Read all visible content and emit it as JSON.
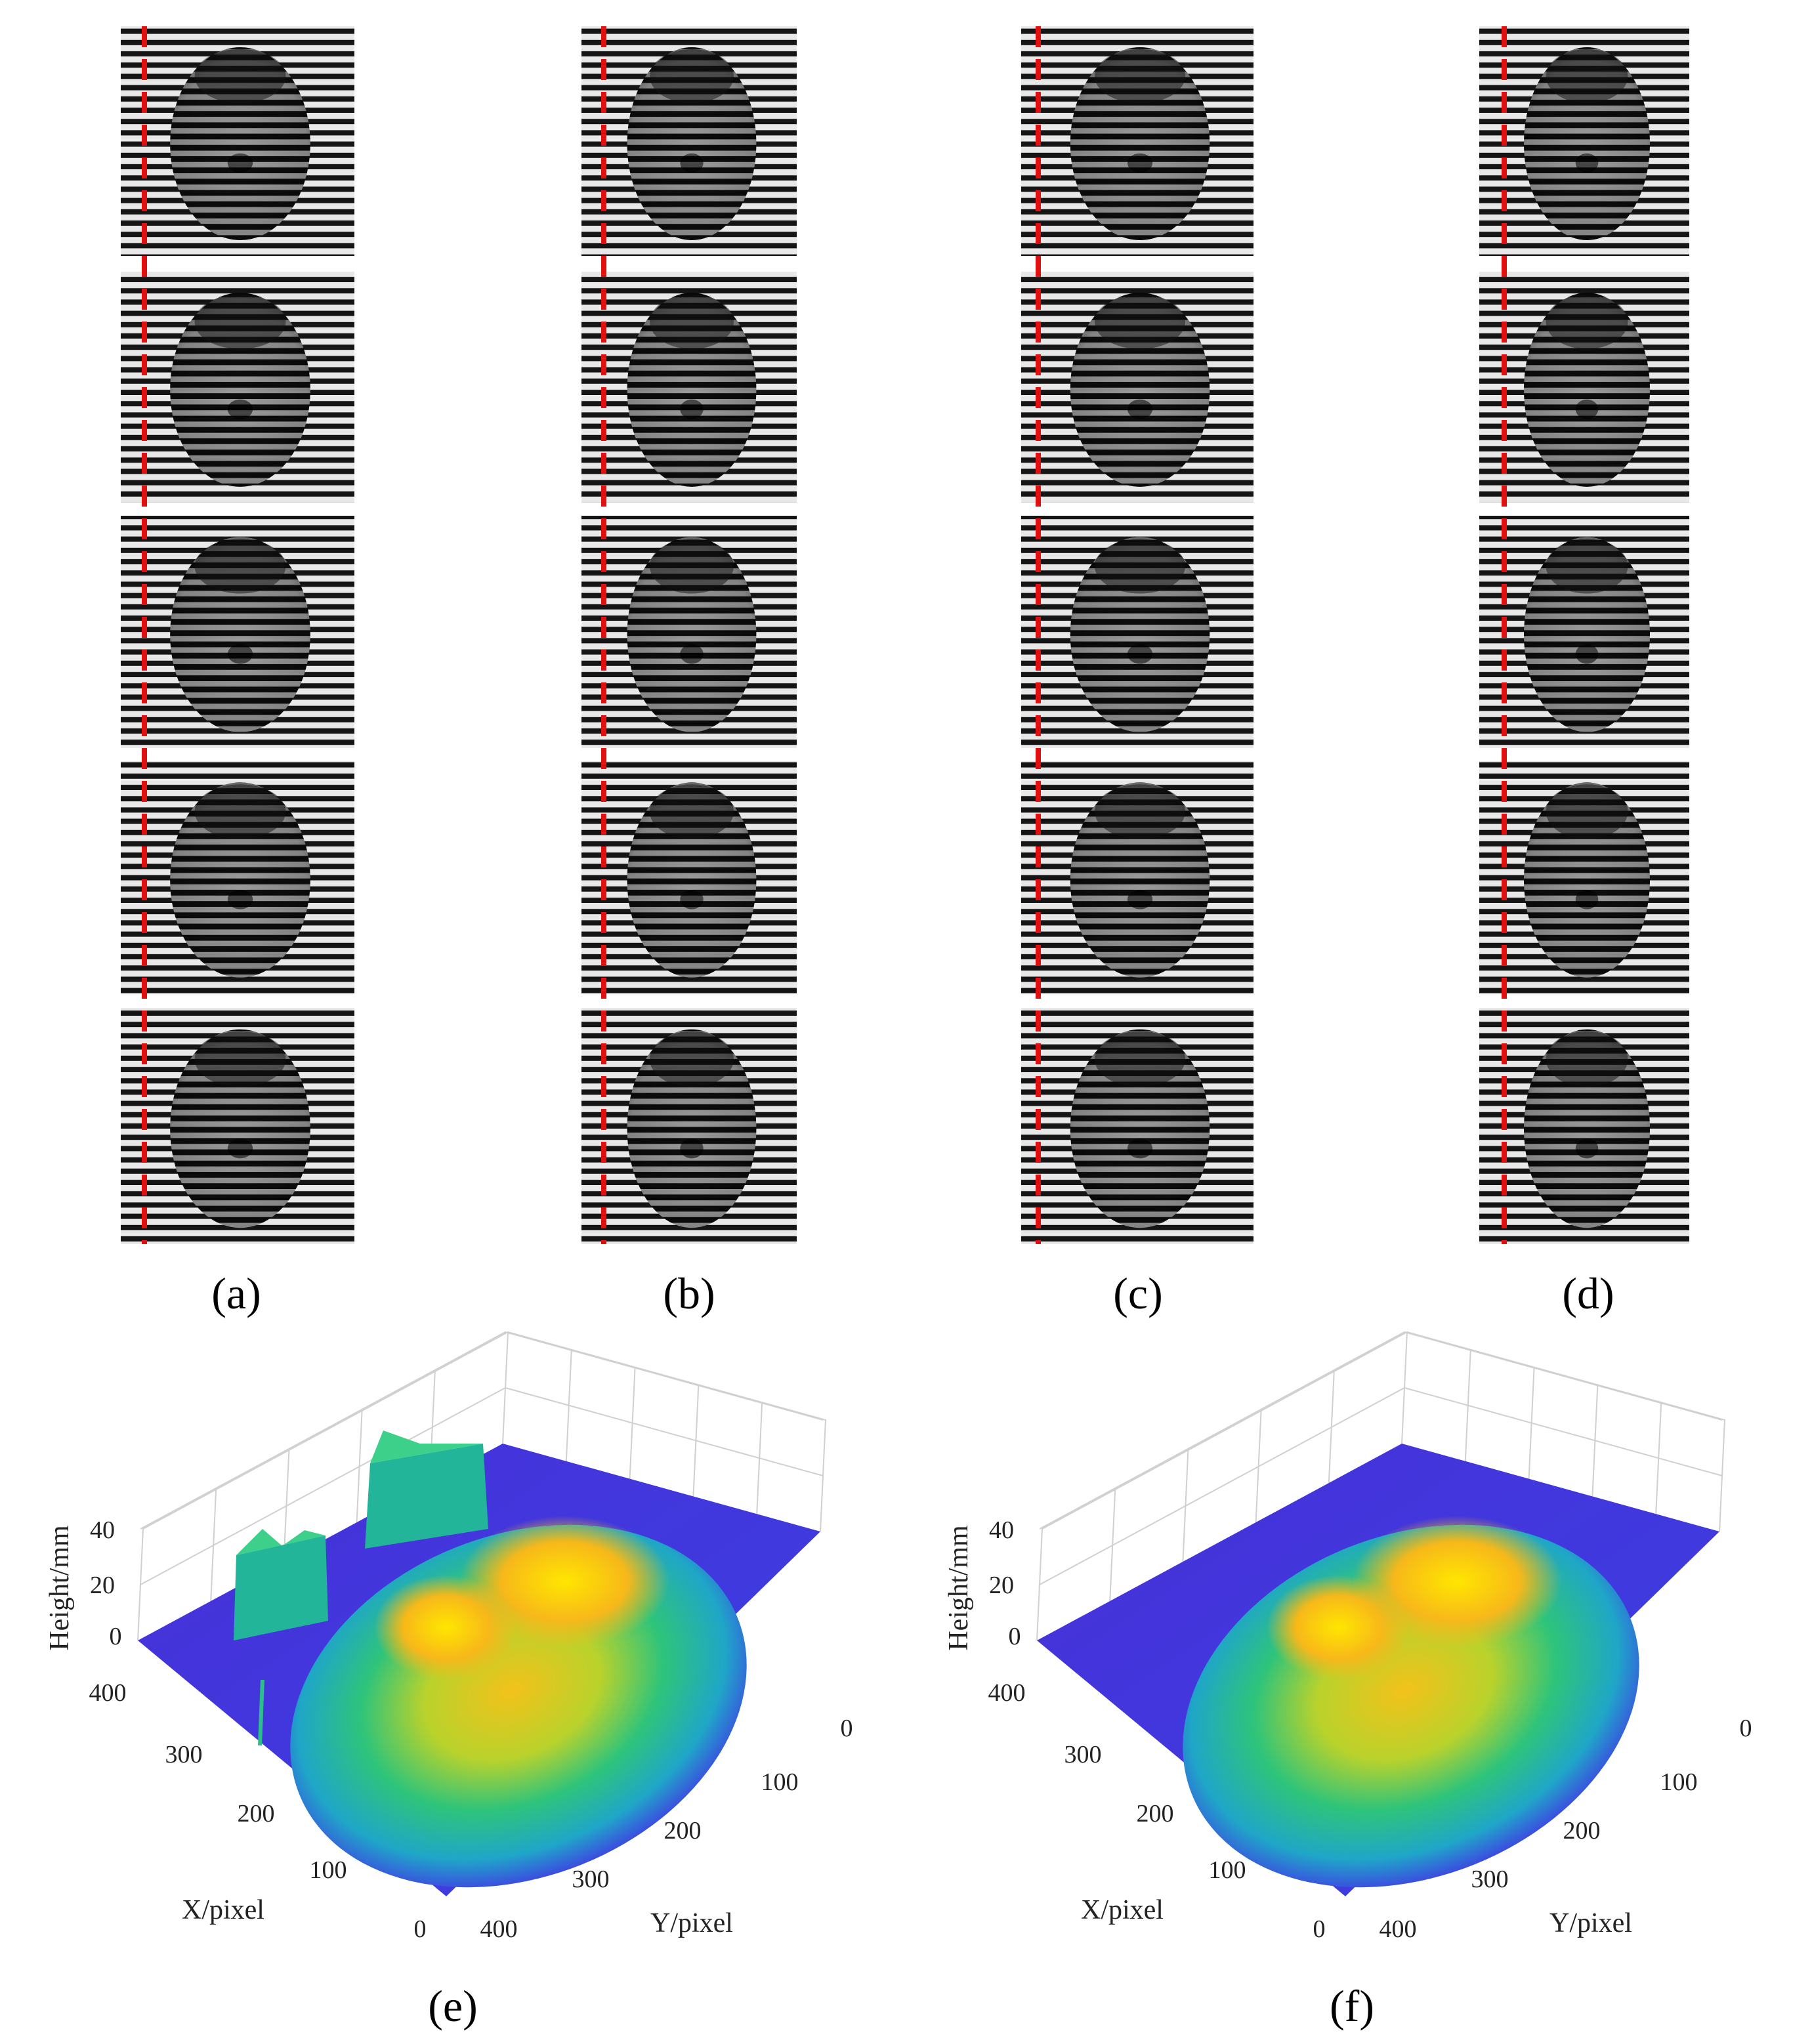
{
  "panels": [
    {
      "label": "(a)"
    },
    {
      "label": "(b)"
    },
    {
      "label": "(c)"
    },
    {
      "label": "(d)"
    }
  ],
  "plots": [
    {
      "label": "(e)",
      "z_axis": {
        "title": "Height/mm",
        "ticks": [
          40,
          20,
          0
        ]
      },
      "x_axis": {
        "title": "X/pixel",
        "ticks": [
          400,
          300,
          200,
          100,
          0
        ]
      },
      "y_axis": {
        "title": "Y/pixel",
        "ticks": [
          0,
          100,
          200,
          300,
          400
        ]
      }
    },
    {
      "label": "(f)",
      "z_axis": {
        "title": "Height/mm",
        "ticks": [
          40,
          20,
          0
        ]
      },
      "x_axis": {
        "title": "X/pixel",
        "ticks": [
          400,
          300,
          200,
          100,
          0
        ]
      },
      "y_axis": {
        "title": "Y/pixel",
        "ticks": [
          0,
          100,
          200,
          300,
          400
        ]
      }
    }
  ]
}
